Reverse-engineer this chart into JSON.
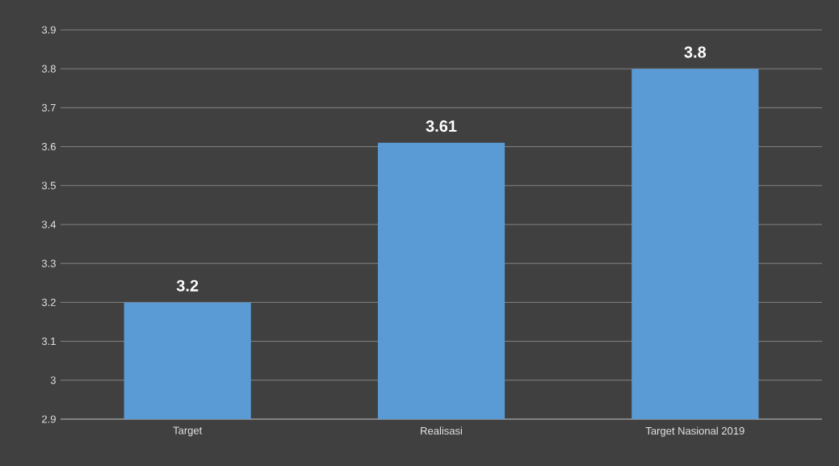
{
  "chart_data": {
    "type": "bar",
    "categories": [
      "Target",
      "Realisasi",
      "Target Nasional 2019"
    ],
    "values": [
      3.2,
      3.61,
      3.8
    ],
    "color": "#5b9bd5",
    "ylim": [
      2.9,
      3.9
    ],
    "yticks": [
      2.9,
      3,
      3.1,
      3.2,
      3.3,
      3.4,
      3.5,
      3.6,
      3.7,
      3.8,
      3.9
    ],
    "grid": "y",
    "data_labels": true
  }
}
